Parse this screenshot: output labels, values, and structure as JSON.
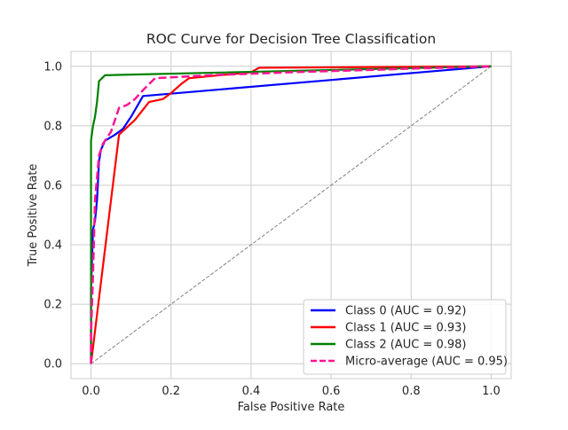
{
  "chart_data": {
    "type": "line",
    "title": "ROC Curve for Decision Tree Classification",
    "xlabel": "False Positive Rate",
    "ylabel": "True Positive Rate",
    "xlim": [
      -0.05,
      1.05
    ],
    "ylim": [
      -0.05,
      1.05
    ],
    "xticks": [
      "0.0",
      "0.2",
      "0.4",
      "0.6",
      "0.8",
      "1.0"
    ],
    "yticks": [
      "0.0",
      "0.2",
      "0.4",
      "0.6",
      "0.8",
      "1.0"
    ],
    "grid": true,
    "legend_position": "lower-right",
    "series": [
      {
        "name": "Class 0 (AUC = 0.92)",
        "color": "#0000ff",
        "style": "solid",
        "points": [
          [
            0.0,
            0.0
          ],
          [
            0.0,
            0.25
          ],
          [
            0.005,
            0.45
          ],
          [
            0.01,
            0.48
          ],
          [
            0.015,
            0.55
          ],
          [
            0.02,
            0.68
          ],
          [
            0.025,
            0.72
          ],
          [
            0.035,
            0.75
          ],
          [
            0.06,
            0.77
          ],
          [
            0.08,
            0.79
          ],
          [
            0.1,
            0.83
          ],
          [
            0.13,
            0.9
          ],
          [
            1.0,
            1.0
          ]
        ]
      },
      {
        "name": "Class 1 (AUC = 0.93)",
        "color": "#ff0000",
        "style": "solid",
        "points": [
          [
            0.0,
            0.0
          ],
          [
            0.07,
            0.77
          ],
          [
            0.11,
            0.82
          ],
          [
            0.145,
            0.88
          ],
          [
            0.18,
            0.89
          ],
          [
            0.2,
            0.91
          ],
          [
            0.225,
            0.94
          ],
          [
            0.245,
            0.96
          ],
          [
            0.4,
            0.98
          ],
          [
            0.42,
            0.995
          ],
          [
            1.0,
            1.0
          ]
        ]
      },
      {
        "name": "Class 2 (AUC = 0.98)",
        "color": "#008000",
        "style": "solid",
        "points": [
          [
            0.0,
            0.0
          ],
          [
            0.0,
            0.75
          ],
          [
            0.005,
            0.8
          ],
          [
            0.01,
            0.83
          ],
          [
            0.015,
            0.88
          ],
          [
            0.02,
            0.95
          ],
          [
            0.035,
            0.97
          ],
          [
            1.0,
            1.0
          ]
        ]
      },
      {
        "name": "Micro-average (AUC = 0.95)",
        "color": "#ff1493",
        "style": "dashed",
        "points": [
          [
            0.0,
            0.0
          ],
          [
            0.0,
            0.1
          ],
          [
            0.005,
            0.3
          ],
          [
            0.01,
            0.55
          ],
          [
            0.02,
            0.7
          ],
          [
            0.03,
            0.74
          ],
          [
            0.05,
            0.78
          ],
          [
            0.07,
            0.86
          ],
          [
            0.09,
            0.87
          ],
          [
            0.11,
            0.89
          ],
          [
            0.13,
            0.92
          ],
          [
            0.16,
            0.96
          ],
          [
            0.3,
            0.97
          ],
          [
            0.5,
            0.98
          ],
          [
            1.0,
            1.0
          ]
        ]
      },
      {
        "name": "",
        "color": "#808080",
        "style": "dashed-thin",
        "points": [
          [
            0.0,
            0.0
          ],
          [
            1.0,
            1.0
          ]
        ]
      }
    ]
  }
}
